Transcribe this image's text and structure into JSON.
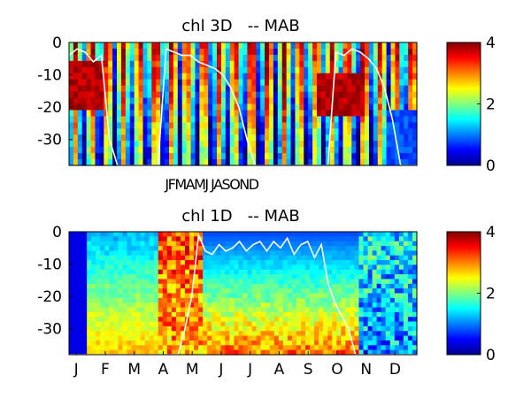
{
  "chart_data": [
    {
      "type": "heatmap",
      "title": "chl 3D   -- MAB",
      "xlabel": "",
      "ylabel": "",
      "x_tick_labels_text": "JFMAMJ JASOND",
      "y_ticks": [
        0,
        -10,
        -20,
        -30
      ],
      "ylim": [
        -38,
        0
      ],
      "colorbar": {
        "ticks": [
          0,
          2,
          4
        ],
        "range": [
          0,
          4
        ],
        "colormap": "jet"
      },
      "overlay_line_color": "#ffffff",
      "months": [
        "J",
        "F",
        "M",
        "A",
        "M",
        "J",
        "J",
        "A",
        "S",
        "O",
        "N",
        "D"
      ],
      "mixed_layer_depth": [
        -4,
        -2,
        -3,
        -6,
        -4,
        -30,
        -38,
        -38,
        -38,
        -38,
        -38,
        -38,
        -2,
        -3,
        -4,
        -4,
        -6,
        -7,
        -8,
        -10,
        -14,
        -20,
        -30,
        -38,
        -38,
        -38,
        -38,
        -38,
        -38,
        -38,
        -38,
        -38,
        -38,
        -3,
        -4,
        -2,
        -3,
        -5,
        -8,
        -14,
        -24,
        -38,
        -38,
        -38
      ]
    },
    {
      "type": "heatmap",
      "title": "chl 1D   -- MAB",
      "xlabel": "",
      "ylabel": "",
      "x_tick_labels": [
        "J",
        "F",
        "M",
        "A",
        "M",
        "J",
        "J",
        "A",
        "S",
        "O",
        "N",
        "D"
      ],
      "y_ticks": [
        0,
        -10,
        -20,
        -30
      ],
      "ylim": [
        -38,
        0
      ],
      "colorbar": {
        "ticks": [
          0,
          2,
          4
        ],
        "range": [
          0,
          4
        ],
        "colormap": "jet"
      },
      "overlay_line_color": "#ffffff",
      "mixed_layer_depth": [
        -38,
        -38,
        -38,
        -38,
        -38,
        -38,
        -38,
        -38,
        -38,
        -38,
        -38,
        -38,
        -38,
        -38,
        -38,
        -38,
        -38,
        -30,
        -20,
        -1,
        -6,
        -7,
        -4,
        -6,
        -5,
        -3,
        -6,
        -4,
        -3,
        -6,
        -3,
        -5,
        -2,
        -7,
        -4,
        -3,
        -8,
        -4,
        -16,
        -22,
        -26,
        -30,
        -38,
        -38,
        -38,
        -38,
        -38,
        -38,
        -38,
        -38,
        -38,
        -38
      ]
    }
  ]
}
